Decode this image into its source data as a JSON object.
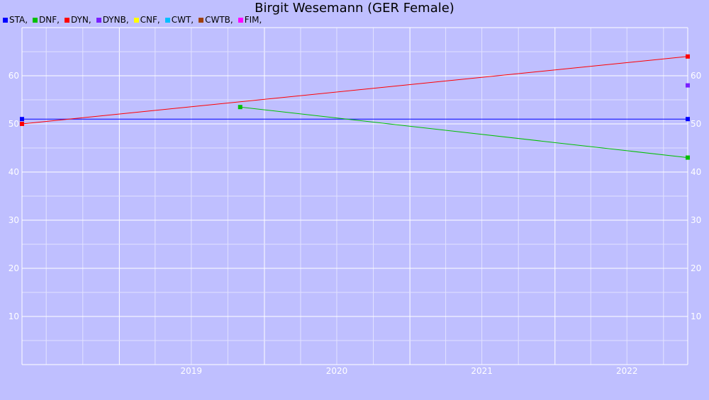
{
  "chart_data": {
    "type": "line",
    "title": "Birgit Wesemann (GER Female)",
    "xlabel": "",
    "ylabel": "",
    "x_ticks": [
      "2019",
      "2020",
      "2021",
      "2022"
    ],
    "y_ticks": [
      10,
      20,
      30,
      40,
      50,
      60
    ],
    "xlim": [
      "2018-05-01",
      "2022-12-01"
    ],
    "ylim": [
      0,
      70
    ],
    "grid": true,
    "legend_position": "top-left",
    "legend": [
      {
        "name": "STA,",
        "color": "#0000ff"
      },
      {
        "name": "DNF,",
        "color": "#00c000"
      },
      {
        "name": "DYN,",
        "color": "#ff0000"
      },
      {
        "name": "DYNB,",
        "color": "#7b1fff"
      },
      {
        "name": "CNF,",
        "color": "#ffff00"
      },
      {
        "name": "CWT,",
        "color": "#00bfff"
      },
      {
        "name": "CWTB,",
        "color": "#a0400a"
      },
      {
        "name": "FIM,",
        "color": "#ff00ff"
      }
    ],
    "series": [
      {
        "name": "STA",
        "color": "#0000ff",
        "points": [
          {
            "x": "2018-05-01",
            "y": 51
          },
          {
            "x": "2022-12-01",
            "y": 51
          }
        ]
      },
      {
        "name": "DNF",
        "color": "#00c000",
        "points": [
          {
            "x": "2019-11-01",
            "y": 53.5
          },
          {
            "x": "2022-12-01",
            "y": 43
          }
        ]
      },
      {
        "name": "DYN",
        "color": "#ff0000",
        "points": [
          {
            "x": "2018-05-01",
            "y": 50
          },
          {
            "x": "2022-12-01",
            "y": 64
          }
        ]
      },
      {
        "name": "DYNB",
        "color": "#7b1fff",
        "points": [
          {
            "x": "2022-12-01",
            "y": 58
          }
        ]
      }
    ]
  }
}
